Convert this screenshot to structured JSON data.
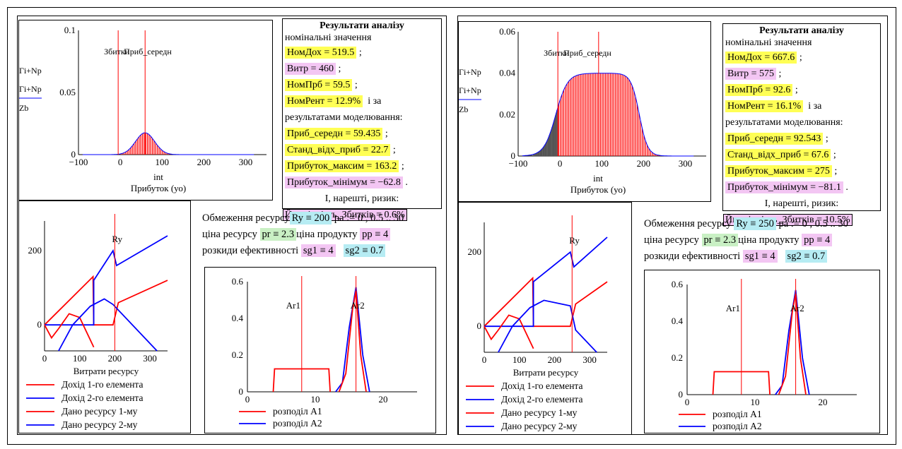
{
  "colors": {
    "red": "#ff0000",
    "blue": "#0000ff",
    "yellow_hl": "#ffff55",
    "pink_hl": "#f3c6f3",
    "green_hl": "#c9f0c4",
    "cyan_hl": "#b6ecf3"
  },
  "panels": [
    {
      "id": "left",
      "hist": {
        "yaxis_labels": [
          "Гі+Np",
          "Гі+Np",
          "Zb"
        ],
        "xlabel_top": "int",
        "xlabel": "Прибуток (уо)",
        "ann": "Збитки",
        "ann2": "Приб_середн",
        "ymax": "0.1",
        "ymid": "0.05",
        "yzero": "0",
        "xticks": [
          "−100",
          "0",
          "100",
          "200",
          "300"
        ]
      },
      "results": {
        "title": "Результати аналізу",
        "subtitle": "номінальні значення",
        "nom_income": "НомДох = 519.5",
        "costs": "Витр = 460",
        "nom_profit": "НомПрб = 59.5",
        "nom_rent": "НомРент = 12.9%",
        "and_by": "і за",
        "sim_label": "результатами моделювання:",
        "mean_profit": "Приб_середн = 59.435",
        "std_profit": "Станд_відх_приб = 22.7",
        "max_profit": "Прибуток_максим = 163.2",
        "min_profit": "Прибуток_мінімум = −62.8",
        "finally": "І, нарешті, ризик:",
        "risk": "Ймовірність_Збитків = 0.6%"
      },
      "params": {
        "l1a": "Обмеження ресурсу",
        "ry": "Ry ≡ 200",
        "l1b": "pa := 0 , 0.5 .. 30",
        "l2a": "ціна ресурсу",
        "pr": "pr ≡ 2.3",
        "l2b": "ціна продукту",
        "pp": "pp ≡ 4",
        "l3a": "розкиди ефективності",
        "sg1": "sg1 ≡ 4",
        "sg2": "sg2 ≡ 0.7"
      },
      "alloc": {
        "ann": "Ry",
        "yticks": [
          "200",
          "0"
        ],
        "xticks": [
          "0",
          "100",
          "200",
          "300"
        ],
        "xlabel": "Витрати ресурсу",
        "legend": [
          "Дохід 1-го елемента",
          "Дохід 2-го елемента",
          "Дано ресурсу 1-му",
          "Дано ресурсу 2-му"
        ]
      },
      "dist": {
        "ann1": "Ar1",
        "ann2": "Ar2",
        "yticks": [
          "0.6",
          "0.4",
          "0.2",
          "0"
        ],
        "xticks": [
          "0",
          "10",
          "20"
        ],
        "legend": [
          "розподіл A1",
          "розподіл A2"
        ]
      }
    },
    {
      "id": "right",
      "hist": {
        "yaxis_labels": [
          "Гі+Np",
          "Гі+Np",
          "Zb"
        ],
        "xlabel_top": "int",
        "xlabel": "Прибуток (уо)",
        "ann": "Збитки",
        "ann2": "Приб_середн",
        "ymax": "0.06",
        "ymid": "0.04",
        "ylow": "0.02",
        "yzero": "0",
        "xticks": [
          "−100",
          "0",
          "100",
          "200",
          "300"
        ]
      },
      "results": {
        "title": "Результати аналізу",
        "subtitle": "номінальні значення",
        "nom_income": "НомДох = 667.6",
        "costs": "Витр = 575",
        "nom_profit": "НомПрб = 92.6",
        "nom_rent": "НомРент = 16.1%",
        "and_by": "і за",
        "sim_label": "результатами моделювання:",
        "mean_profit": "Приб_середн = 92.543",
        "std_profit": "Станд_відх_приб = 67.6",
        "max_profit": "Прибуток_максим = 275",
        "min_profit": "Прибуток_мінімум = −81.1",
        "finally": "І, нарешті, ризик:",
        "risk": "Ймовірність_Збитків = 10.5%"
      },
      "params": {
        "l1a": "Обмеження ресурсу",
        "ry": "Ry ≡ 250",
        "l1b": "pa := 0 , 0.5 .. 30",
        "l2a": "ціна ресурсу",
        "pr": "pr ≡ 2.3",
        "l2b": "ціна продукту",
        "pp": "pp ≡ 4",
        "l3a": "розкиди ефективності",
        "sg1": "sg1 ≡ 4",
        "sg2": "sg2 ≡ 0.7"
      },
      "alloc": {
        "ann": "Ry",
        "yticks": [
          "200",
          "0"
        ],
        "xticks": [
          "0",
          "100",
          "200",
          "300"
        ],
        "xlabel": "Витрати ресурсу",
        "legend": [
          "Дохід 1-го елемента",
          "Дохід 2-го елемента",
          "Дано ресурсу 1-му",
          "Дано ресурсу 2-му"
        ]
      },
      "dist": {
        "ann1": "Ar1",
        "ann2": "Ar2",
        "yticks": [
          "0.6",
          "0.4",
          "0.2",
          "0"
        ],
        "xticks": [
          "0",
          "10",
          "20"
        ],
        "legend": [
          "розподіл A1",
          "розподіл A2"
        ]
      }
    }
  ],
  "chart_data": [
    {
      "type": "bar",
      "title": "Прибуток (уо) — left",
      "xlabel": "Прибуток (уо)",
      "xlim": [
        -100,
        350
      ],
      "ylim": [
        0,
        0.1
      ],
      "distribution": {
        "shape": "normal",
        "mean": 59.435,
        "std": 22.7
      },
      "vlines": [
        -5,
        59.435
      ]
    },
    {
      "type": "line",
      "title": "Витрати ресурсу — left",
      "xlabel": "Витрати ресурсу",
      "xlim": [
        0,
        350
      ],
      "ylim": [
        -70,
        280
      ],
      "vline": 200,
      "series": [
        {
          "name": "Дохід 1-го елемента",
          "color": "red"
        },
        {
          "name": "Дохід 2-го елемента",
          "color": "blue"
        },
        {
          "name": "Дано ресурсу 1-му",
          "color": "red"
        },
        {
          "name": "Дано ресурсу 2-му",
          "color": "blue"
        }
      ]
    },
    {
      "type": "line",
      "title": "розподіл — left",
      "xlim": [
        0,
        25
      ],
      "ylim": [
        0,
        0.6
      ],
      "vlines": [
        8,
        16
      ],
      "series": [
        {
          "name": "розподіл A1",
          "x": [
            3.8,
            4,
            12,
            12.2
          ],
          "y": [
            0,
            0.125,
            0.125,
            0
          ]
        },
        {
          "name": "розподіл A2",
          "x": [
            13,
            14,
            15,
            16,
            17,
            18
          ],
          "y": [
            0,
            0.05,
            0.35,
            0.57,
            0.2,
            0
          ]
        }
      ]
    },
    {
      "type": "bar",
      "title": "Прибуток (уо) — right",
      "xlabel": "Прибуток (уо)",
      "xlim": [
        -100,
        350
      ],
      "ylim": [
        0,
        0.06
      ],
      "distribution": {
        "shape": "flat-top",
        "mean": 92.543,
        "std": 67.6
      },
      "vlines": [
        -5,
        92.543
      ]
    },
    {
      "type": "line",
      "title": "Витрати ресурсу — right",
      "xlabel": "Витрати ресурсу",
      "xlim": [
        0,
        350
      ],
      "ylim": [
        -70,
        280
      ],
      "vline": 250,
      "series": [
        {
          "name": "Дохід 1-го елемента",
          "color": "red"
        },
        {
          "name": "Дохід 2-го елемента",
          "color": "blue"
        },
        {
          "name": "Дано ресурсу 1-му",
          "color": "red"
        },
        {
          "name": "Дано ресурсу 2-му",
          "color": "blue"
        }
      ]
    },
    {
      "type": "line",
      "title": "розподіл — right",
      "xlim": [
        0,
        25
      ],
      "ylim": [
        0,
        0.6
      ],
      "vlines": [
        8,
        16
      ],
      "series": [
        {
          "name": "розподіл A1",
          "x": [
            3.8,
            4,
            12,
            12.2
          ],
          "y": [
            0,
            0.125,
            0.125,
            0
          ]
        },
        {
          "name": "розподіл A2",
          "x": [
            13,
            14,
            15,
            16,
            17,
            18
          ],
          "y": [
            0,
            0.05,
            0.35,
            0.57,
            0.2,
            0
          ]
        }
      ]
    }
  ]
}
